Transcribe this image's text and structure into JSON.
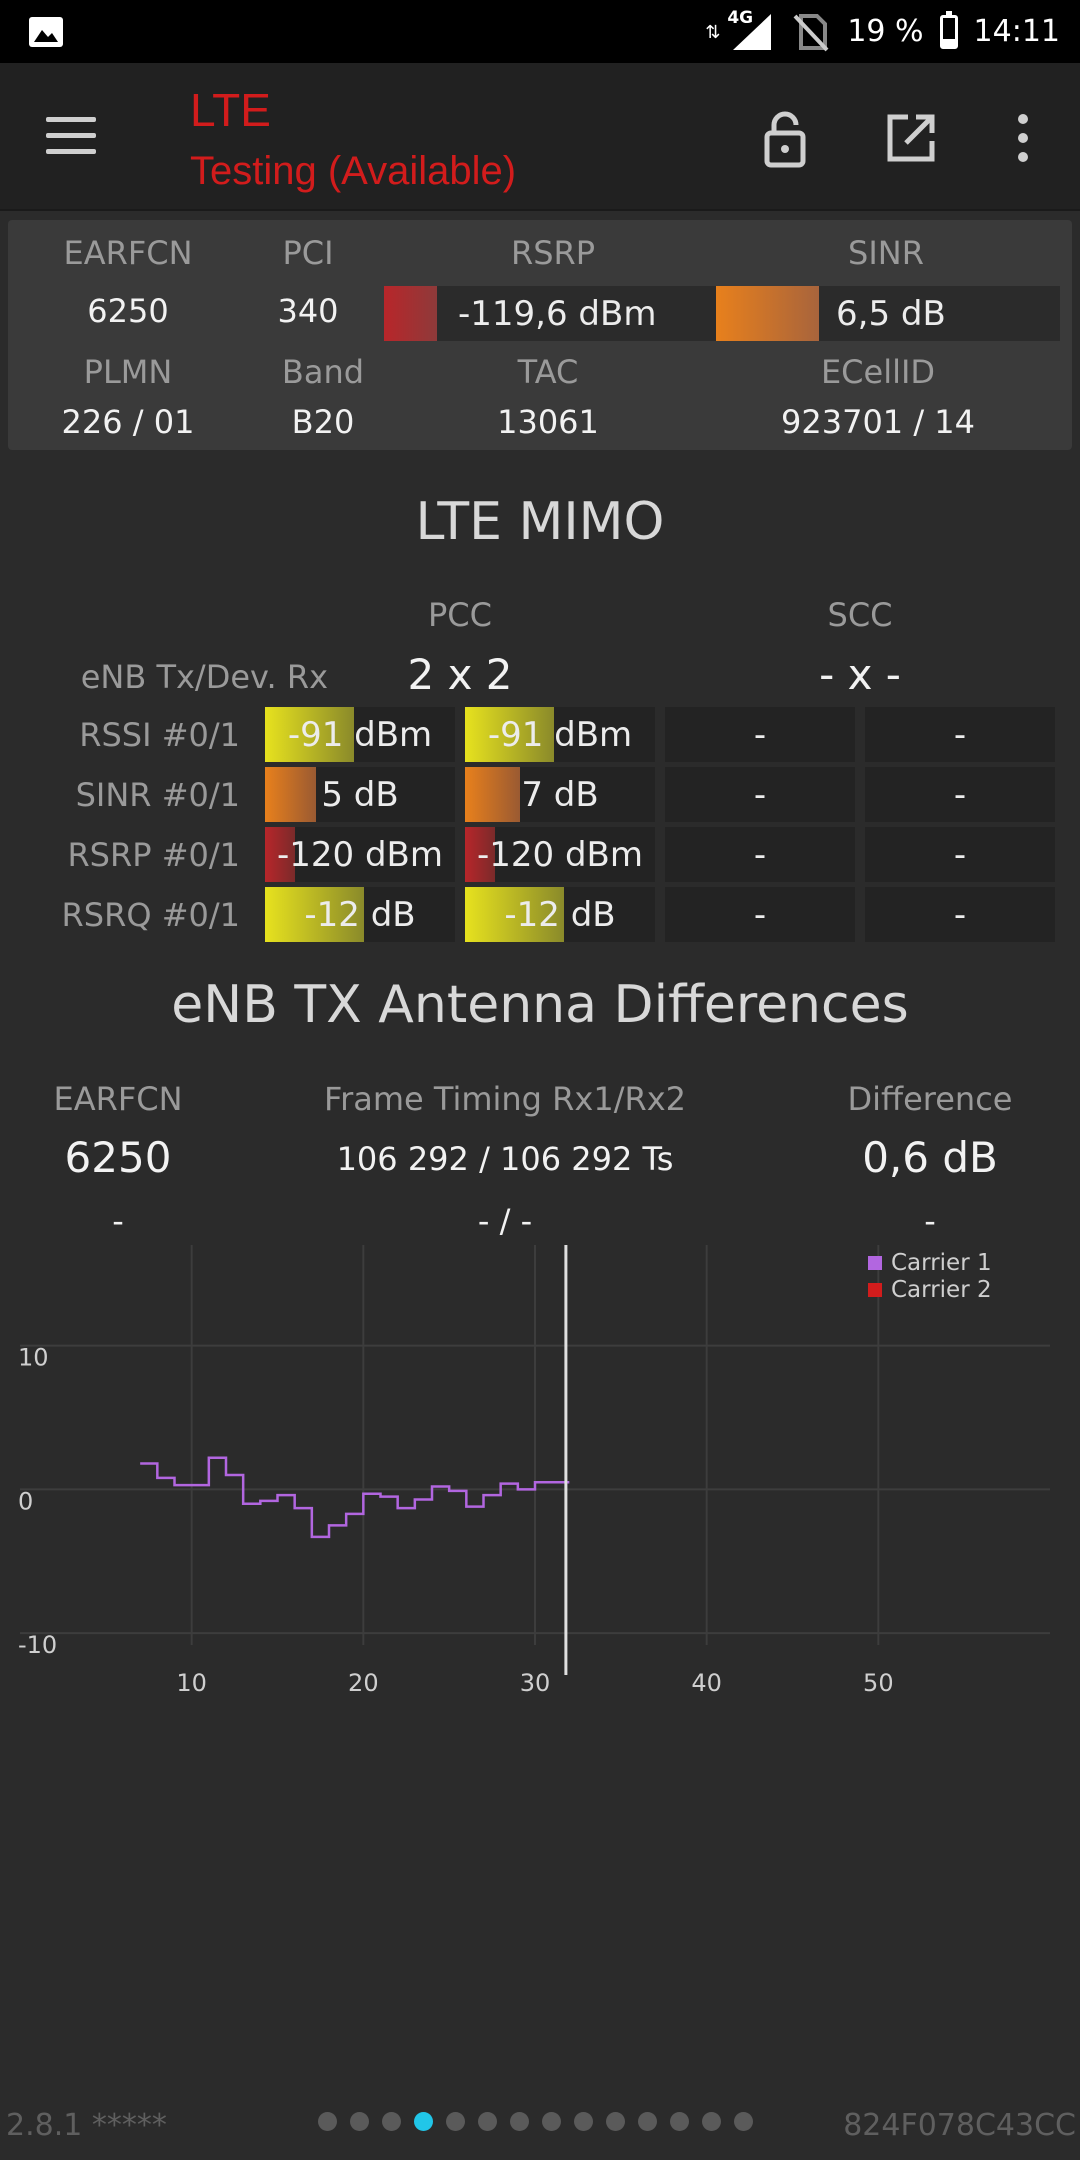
{
  "status_bar": {
    "network_type": "4G",
    "battery": "19 %",
    "time": "14:11"
  },
  "app_bar": {
    "title": "LTE",
    "subtitle": "Testing (Available)",
    "icons": [
      "menu-icon",
      "lock-icon",
      "open-external-icon",
      "more-vert-icon"
    ]
  },
  "cell_info": {
    "earfcn_label": "EARFCN",
    "earfcn": "6250",
    "pci_label": "PCI",
    "pci": "340",
    "rsrp_label": "RSRP",
    "rsrp": "-119,6 dBm",
    "rsrp_level": 0.16,
    "sinr_label": "SINR",
    "sinr": "6,5 dB",
    "sinr_level": 0.3,
    "plmn_label": "PLMN",
    "plmn": "226 / 01",
    "band_label": "Band",
    "band": "B20",
    "tac_label": "TAC",
    "tac": "13061",
    "ecellid_label": "ECellID",
    "ecellid": "923701 / 14"
  },
  "mimo": {
    "title": "LTE MIMO",
    "pcc_label": "PCC",
    "scc_label": "SCC",
    "config_label": "eNB Tx/Dev. Rx",
    "pcc_config": "2 x 2",
    "scc_config": "- x -",
    "rows": [
      {
        "label": "RSSI #0/1",
        "pcc0": "-91 dBm",
        "pcc1": "-91 dBm",
        "scc0": "-",
        "scc1": "-",
        "level0": 0.47,
        "level1": 0.47,
        "color": "yellow"
      },
      {
        "label": "SINR #0/1",
        "pcc0": "5 dB",
        "pcc1": "7 dB",
        "scc0": "-",
        "scc1": "-",
        "level0": 0.27,
        "level1": 0.29,
        "color": "orange"
      },
      {
        "label": "RSRP #0/1",
        "pcc0": "-120 dBm",
        "pcc1": "-120 dBm",
        "scc0": "-",
        "scc1": "-",
        "level0": 0.16,
        "level1": 0.16,
        "color": "red"
      },
      {
        "label": "RSRQ #0/1",
        "pcc0": "-12 dB",
        "pcc1": "-12 dB",
        "scc0": "-",
        "scc1": "-",
        "level0": 0.52,
        "level1": 0.52,
        "color": "yellow"
      }
    ]
  },
  "antenna": {
    "title": "eNB TX Antenna Differences",
    "earfcn_label": "EARFCN",
    "timing_label": "Frame Timing Rx1/Rx2",
    "difference_label": "Difference",
    "earfcn_value": "6250",
    "timing_value": "106 292 / 106 292 Ts",
    "difference_value": "0,6 dB",
    "earfcn_value2": "-",
    "timing_value2": "- / -",
    "difference_value2": "-"
  },
  "chart_data": {
    "type": "line",
    "x_ticks": [
      10,
      20,
      30,
      40,
      50
    ],
    "y_ticks": [
      10,
      0,
      -10
    ],
    "xlim": [
      0,
      60
    ],
    "ylim": [
      -15,
      17
    ],
    "cursor_x": 31.8,
    "legend_position": "top-right",
    "grid": true,
    "series": [
      {
        "name": "Carrier 1",
        "color": "#b266e0",
        "x": [
          7,
          8,
          9,
          10,
          11,
          12,
          13,
          14,
          15,
          16,
          17,
          18,
          19,
          20,
          21,
          22,
          23,
          24,
          25,
          26,
          27,
          28,
          29,
          30,
          31,
          32
        ],
        "y": [
          1.8,
          0.8,
          0.3,
          0.3,
          2.2,
          1.0,
          -1.0,
          -0.8,
          -0.4,
          -1.3,
          -3.3,
          -2.5,
          -1.7,
          -0.3,
          -0.5,
          -1.3,
          -0.7,
          0.2,
          -0.1,
          -1.2,
          -0.4,
          0.4,
          0.0,
          0.5,
          0.5,
          0.5
        ]
      },
      {
        "name": "Carrier 2",
        "color": "#d21c1c",
        "x": [],
        "y": []
      }
    ]
  },
  "footer": {
    "version": "2.8.1 *****",
    "device_id": "824F078C43CC",
    "page_count": 14,
    "active_page": 3
  }
}
